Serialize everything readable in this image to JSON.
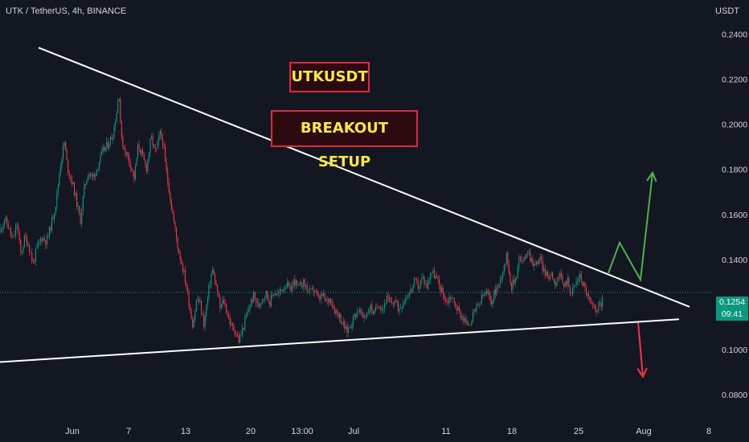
{
  "header": {
    "symbol_title": "UTK / TetherUS, 4h, BINANCE",
    "axis_unit": "USDT"
  },
  "current_price": {
    "price": "0.1254",
    "countdown": "09:41"
  },
  "annotations": {
    "title_label": "UTKUSDT",
    "setup_label": "BREAKOUT SETUP"
  },
  "colors": {
    "background": "#131722",
    "up": "#089981",
    "down": "#f23645",
    "trendline": "#ffffff",
    "arrow_up": "#4caf50",
    "arrow_down": "#f23645",
    "label_border": "#e0283c",
    "label_text": "#f8e93a"
  },
  "chart_data": {
    "type": "candlestick",
    "symbol": "UTK / TetherUS",
    "interval": "4h",
    "exchange": "BINANCE",
    "ylabel": "USDT",
    "ylim": [
      0.074,
      0.248
    ],
    "x_ticks": [
      "Jun",
      "7",
      "13",
      "20",
      "13:00",
      "Jul",
      "11",
      "18",
      "25",
      "Aug",
      "8"
    ],
    "y_ticks": [
      "0.0800",
      "0.1000",
      "0.1200",
      "0.1400",
      "0.1600",
      "0.1800",
      "0.2000",
      "0.2200",
      "0.2400"
    ],
    "last_price": 0.1254,
    "price_path": [
      [
        0,
        0.152
      ],
      [
        5,
        0.158
      ],
      [
        10,
        0.155
      ],
      [
        16,
        0.148
      ],
      [
        21,
        0.156
      ],
      [
        26,
        0.142
      ],
      [
        31,
        0.15
      ],
      [
        36,
        0.146
      ],
      [
        41,
        0.138
      ],
      [
        46,
        0.145
      ],
      [
        52,
        0.15
      ],
      [
        58,
        0.148
      ],
      [
        64,
        0.156
      ],
      [
        70,
        0.166
      ],
      [
        75,
        0.182
      ],
      [
        80,
        0.192
      ],
      [
        84,
        0.181
      ],
      [
        90,
        0.174
      ],
      [
        95,
        0.166
      ],
      [
        100,
        0.157
      ],
      [
        105,
        0.172
      ],
      [
        110,
        0.179
      ],
      [
        116,
        0.176
      ],
      [
        122,
        0.182
      ],
      [
        128,
        0.188
      ],
      [
        134,
        0.191
      ],
      [
        140,
        0.195
      ],
      [
        145,
        0.205
      ],
      [
        148,
        0.215
      ],
      [
        151,
        0.193
      ],
      [
        156,
        0.188
      ],
      [
        162,
        0.183
      ],
      [
        167,
        0.176
      ],
      [
        172,
        0.191
      ],
      [
        177,
        0.186
      ],
      [
        182,
        0.18
      ],
      [
        188,
        0.194
      ],
      [
        194,
        0.187
      ],
      [
        199,
        0.196
      ],
      [
        203,
        0.192
      ],
      [
        206,
        0.181
      ],
      [
        210,
        0.172
      ],
      [
        214,
        0.162
      ],
      [
        218,
        0.153
      ],
      [
        222,
        0.144
      ],
      [
        227,
        0.137
      ],
      [
        232,
        0.128
      ],
      [
        236,
        0.119
      ],
      [
        240,
        0.111
      ],
      [
        245,
        0.123
      ],
      [
        249,
        0.12
      ],
      [
        254,
        0.111
      ],
      [
        259,
        0.125
      ],
      [
        264,
        0.136
      ],
      [
        269,
        0.128
      ],
      [
        274,
        0.118
      ],
      [
        278,
        0.122
      ],
      [
        283,
        0.116
      ],
      [
        288,
        0.11
      ],
      [
        292,
        0.109
      ],
      [
        297,
        0.104
      ],
      [
        301,
        0.108
      ],
      [
        306,
        0.114
      ],
      [
        311,
        0.12
      ],
      [
        316,
        0.124
      ],
      [
        321,
        0.119
      ],
      [
        326,
        0.123
      ],
      [
        331,
        0.125
      ],
      [
        336,
        0.121
      ],
      [
        341,
        0.126
      ],
      [
        346,
        0.124
      ],
      [
        351,
        0.127
      ],
      [
        356,
        0.129
      ],
      [
        361,
        0.126
      ],
      [
        366,
        0.131
      ],
      [
        371,
        0.127
      ],
      [
        376,
        0.13
      ],
      [
        381,
        0.128
      ],
      [
        386,
        0.125
      ],
      [
        391,
        0.127
      ],
      [
        396,
        0.122
      ],
      [
        401,
        0.124
      ],
      [
        406,
        0.121
      ],
      [
        411,
        0.123
      ],
      [
        416,
        0.118
      ],
      [
        421,
        0.116
      ],
      [
        426,
        0.112
      ],
      [
        431,
        0.108
      ],
      [
        436,
        0.111
      ],
      [
        441,
        0.115
      ],
      [
        446,
        0.118
      ],
      [
        451,
        0.114
      ],
      [
        456,
        0.116
      ],
      [
        461,
        0.119
      ],
      [
        466,
        0.116
      ],
      [
        471,
        0.121
      ],
      [
        476,
        0.118
      ],
      [
        481,
        0.123
      ],
      [
        486,
        0.12
      ],
      [
        491,
        0.122
      ],
      [
        496,
        0.118
      ],
      [
        501,
        0.121
      ],
      [
        506,
        0.124
      ],
      [
        511,
        0.126
      ],
      [
        516,
        0.13
      ],
      [
        521,
        0.128
      ],
      [
        526,
        0.132
      ],
      [
        531,
        0.128
      ],
      [
        536,
        0.135
      ],
      [
        541,
        0.133
      ],
      [
        546,
        0.129
      ],
      [
        551,
        0.125
      ],
      [
        556,
        0.121
      ],
      [
        561,
        0.124
      ],
      [
        566,
        0.12
      ],
      [
        571,
        0.117
      ],
      [
        576,
        0.114
      ],
      [
        581,
        0.111
      ],
      [
        586,
        0.113
      ],
      [
        591,
        0.117
      ],
      [
        596,
        0.12
      ],
      [
        601,
        0.124
      ],
      [
        606,
        0.125
      ],
      [
        611,
        0.121
      ],
      [
        616,
        0.126
      ],
      [
        621,
        0.129
      ],
      [
        626,
        0.136
      ],
      [
        631,
        0.142
      ],
      [
        636,
        0.128
      ],
      [
        641,
        0.131
      ],
      [
        646,
        0.141
      ],
      [
        651,
        0.138
      ],
      [
        656,
        0.145
      ],
      [
        661,
        0.14
      ],
      [
        666,
        0.137
      ],
      [
        671,
        0.141
      ],
      [
        676,
        0.136
      ],
      [
        681,
        0.132
      ],
      [
        686,
        0.134
      ],
      [
        691,
        0.13
      ],
      [
        696,
        0.133
      ],
      [
        701,
        0.128
      ],
      [
        706,
        0.131
      ],
      [
        711,
        0.125
      ],
      [
        716,
        0.129
      ],
      [
        721,
        0.133
      ],
      [
        726,
        0.129
      ],
      [
        731,
        0.124
      ],
      [
        736,
        0.119
      ],
      [
        741,
        0.118
      ],
      [
        746,
        0.12
      ],
      [
        748,
        0.1185
      ],
      [
        750,
        0.1254
      ]
    ],
    "trendlines": [
      {
        "name": "descending resistance",
        "points": [
          [
            48,
            0.234
          ],
          [
            858,
            0.119
          ]
        ]
      },
      {
        "name": "ascending support",
        "points": [
          [
            0,
            0.0945
          ],
          [
            845,
            0.1135
          ]
        ]
      }
    ],
    "scenario_arrows": [
      {
        "direction": "up",
        "points": [
          [
            757,
            0.134
          ],
          [
            771,
            0.1475
          ],
          [
            797,
            0.131
          ],
          [
            812,
            0.1785
          ]
        ]
      },
      {
        "direction": "down",
        "points": [
          [
            794,
            0.112
          ],
          [
            800,
            0.088
          ]
        ]
      }
    ]
  }
}
